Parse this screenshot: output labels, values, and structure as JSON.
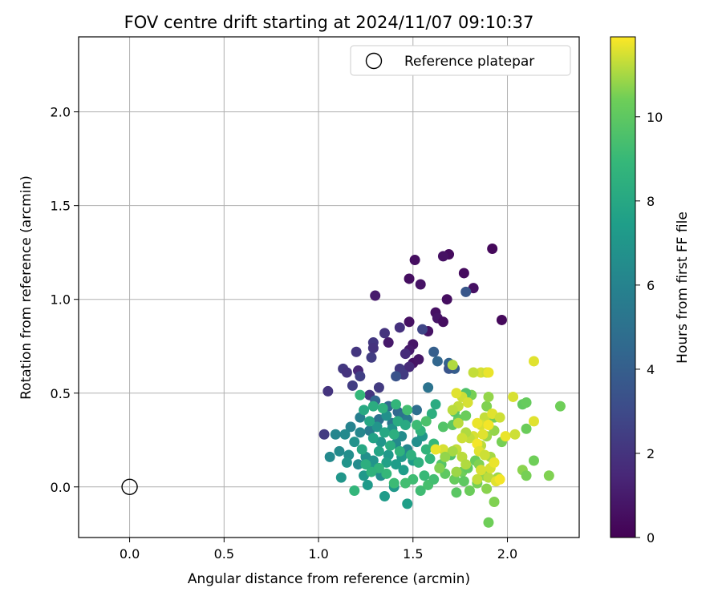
{
  "chart_data": {
    "type": "scatter",
    "title": "FOV centre drift starting at 2024/11/07 09:10:37",
    "xlabel": "Angular distance from reference (arcmin)",
    "ylabel": "Rotation from reference (arcmin)",
    "xlim": [
      -0.27,
      2.38
    ],
    "ylim": [
      -0.27,
      2.4
    ],
    "xticks": [
      0.0,
      0.5,
      1.0,
      1.5,
      2.0
    ],
    "xtick_labels": [
      "0.0",
      "0.5",
      "1.0",
      "1.5",
      "2.0"
    ],
    "yticks": [
      0.0,
      0.5,
      1.0,
      1.5,
      2.0
    ],
    "ytick_labels": [
      "0.0",
      "0.5",
      "1.0",
      "1.5",
      "2.0"
    ],
    "grid": true,
    "legend": {
      "placement": "top-right",
      "entries": [
        {
          "label": "Reference platepar",
          "marker": "open-circle",
          "color": "#000000"
        }
      ]
    },
    "reference_point": {
      "x": 0.0,
      "y": 0.0
    },
    "colorbar": {
      "label": "Hours from first FF file",
      "colormap": "viridis",
      "range": [
        0,
        11.9
      ],
      "ticks": [
        0,
        2,
        4,
        6,
        8,
        10
      ],
      "tick_labels": [
        "0",
        "2",
        "4",
        "6",
        "8",
        "10"
      ]
    },
    "points": [
      [
        1.92,
        1.27,
        0.3
      ],
      [
        1.51,
        1.21,
        0.5
      ],
      [
        1.69,
        1.24,
        0.4
      ],
      [
        1.66,
        1.23,
        0.6
      ],
      [
        1.77,
        1.14,
        0.4
      ],
      [
        1.48,
        1.11,
        0.5
      ],
      [
        1.54,
        1.08,
        0.7
      ],
      [
        1.82,
        1.06,
        0.6
      ],
      [
        1.3,
        1.02,
        1.0
      ],
      [
        1.68,
        1.0,
        0.5
      ],
      [
        1.97,
        0.89,
        0.3
      ],
      [
        1.62,
        0.93,
        0.6
      ],
      [
        1.63,
        0.9,
        0.8
      ],
      [
        1.66,
        0.88,
        0.5
      ],
      [
        1.48,
        0.88,
        0.6
      ],
      [
        1.58,
        0.83,
        0.7
      ],
      [
        1.5,
        0.76,
        0.8
      ],
      [
        1.37,
        0.77,
        0.9
      ],
      [
        1.48,
        0.73,
        1.0
      ],
      [
        1.5,
        0.66,
        0.7
      ],
      [
        1.53,
        0.68,
        0.8
      ],
      [
        1.55,
        0.84,
        2.8
      ],
      [
        1.78,
        1.04,
        3.6
      ],
      [
        1.43,
        0.85,
        1.9
      ],
      [
        1.35,
        0.82,
        2.0
      ],
      [
        1.29,
        0.77,
        2.2
      ],
      [
        1.29,
        0.74,
        2.0
      ],
      [
        1.2,
        0.72,
        2.1
      ],
      [
        1.46,
        0.71,
        1.7
      ],
      [
        1.48,
        0.64,
        1.6
      ],
      [
        1.43,
        0.63,
        2.2
      ],
      [
        1.45,
        0.6,
        2.3
      ],
      [
        1.28,
        0.69,
        2.4
      ],
      [
        1.21,
        0.62,
        1.5
      ],
      [
        1.13,
        0.63,
        2.2
      ],
      [
        1.15,
        0.61,
        2.0
      ],
      [
        1.22,
        0.59,
        2.5
      ],
      [
        1.32,
        0.53,
        2.3
      ],
      [
        1.27,
        0.49,
        2.1
      ],
      [
        1.18,
        0.54,
        2.4
      ],
      [
        1.05,
        0.51,
        2.0
      ],
      [
        1.03,
        0.28,
        2.3
      ],
      [
        1.41,
        0.59,
        3.4
      ],
      [
        1.61,
        0.72,
        4.0
      ],
      [
        1.63,
        0.67,
        4.4
      ],
      [
        1.69,
        0.66,
        4.2
      ],
      [
        1.72,
        0.63,
        3.9
      ],
      [
        1.69,
        0.63,
        3.5
      ],
      [
        1.3,
        0.46,
        4.4
      ],
      [
        1.37,
        0.43,
        4.6
      ],
      [
        1.42,
        0.4,
        4.5
      ],
      [
        1.45,
        0.38,
        5.0
      ],
      [
        1.52,
        0.41,
        4.8
      ],
      [
        1.58,
        0.53,
        5.1
      ],
      [
        1.47,
        0.36,
        5.5
      ],
      [
        1.39,
        0.34,
        5.3
      ],
      [
        1.32,
        0.36,
        5.0
      ],
      [
        1.27,
        0.3,
        5.6
      ],
      [
        1.22,
        0.37,
        5.7
      ],
      [
        1.17,
        0.32,
        6.0
      ],
      [
        1.22,
        0.29,
        6.2
      ],
      [
        1.14,
        0.28,
        6.3
      ],
      [
        1.09,
        0.28,
        6.1
      ],
      [
        1.11,
        0.19,
        6.4
      ],
      [
        1.06,
        0.16,
        6.3
      ],
      [
        1.16,
        0.17,
        6.6
      ],
      [
        1.19,
        0.24,
        6.8
      ],
      [
        1.15,
        0.13,
        6.9
      ],
      [
        1.12,
        0.05,
        7.0
      ],
      [
        1.21,
        0.12,
        6.5
      ],
      [
        1.25,
        0.16,
        6.7
      ],
      [
        1.29,
        0.14,
        6.9
      ],
      [
        1.24,
        0.06,
        7.1
      ],
      [
        1.3,
        0.1,
        7.0
      ],
      [
        1.33,
        0.06,
        6.6
      ],
      [
        1.26,
        0.01,
        7.2
      ],
      [
        1.35,
        -0.05,
        7.3
      ],
      [
        1.47,
        -0.09,
        7.5
      ],
      [
        1.4,
        0.0,
        7.1
      ],
      [
        1.45,
        0.09,
        7.4
      ],
      [
        1.37,
        0.17,
        7.2
      ],
      [
        1.33,
        0.24,
        7.0
      ],
      [
        1.31,
        0.32,
        6.9
      ],
      [
        1.36,
        0.38,
        6.7
      ],
      [
        1.39,
        0.31,
        6.8
      ],
      [
        1.44,
        0.27,
        6.5
      ],
      [
        1.41,
        0.23,
        6.4
      ],
      [
        1.47,
        0.2,
        6.2
      ],
      [
        1.52,
        0.24,
        6.6
      ],
      [
        1.55,
        0.27,
        7.0
      ],
      [
        1.5,
        0.14,
        7.3
      ],
      [
        1.44,
        0.16,
        7.1
      ],
      [
        1.41,
        0.12,
        7.4
      ],
      [
        1.36,
        0.13,
        7.6
      ],
      [
        1.32,
        0.19,
        7.8
      ],
      [
        1.29,
        0.26,
        7.7
      ],
      [
        1.27,
        0.35,
        7.9
      ],
      [
        1.35,
        0.29,
        8.0
      ],
      [
        1.42,
        0.35,
        8.2
      ],
      [
        1.46,
        0.33,
        8.1
      ],
      [
        1.4,
        0.28,
        8.4
      ],
      [
        1.38,
        0.22,
        8.3
      ],
      [
        1.43,
        0.19,
        8.6
      ],
      [
        1.49,
        0.17,
        8.5
      ],
      [
        1.57,
        0.2,
        8.7
      ],
      [
        1.61,
        0.23,
        8.9
      ],
      [
        1.59,
        0.15,
        8.8
      ],
      [
        1.53,
        0.13,
        8.5
      ],
      [
        1.56,
        0.06,
        9.0
      ],
      [
        1.5,
        0.04,
        9.2
      ],
      [
        1.46,
        0.02,
        9.3
      ],
      [
        1.4,
        0.02,
        9.1
      ],
      [
        1.36,
        0.07,
        8.9
      ],
      [
        1.32,
        0.1,
        8.7
      ],
      [
        1.28,
        0.08,
        8.6
      ],
      [
        1.25,
        0.12,
        8.4
      ],
      [
        1.23,
        0.2,
        8.0
      ],
      [
        1.19,
        -0.02,
        8.8
      ],
      [
        1.54,
        -0.02,
        9.2
      ],
      [
        1.58,
        0.01,
        9.4
      ],
      [
        1.61,
        0.04,
        9.3
      ],
      [
        1.54,
        0.3,
        8.6
      ],
      [
        1.6,
        0.39,
        8.4
      ],
      [
        1.62,
        0.44,
        8.2
      ],
      [
        1.52,
        0.33,
        9.1
      ],
      [
        1.47,
        0.41,
        9.3
      ],
      [
        1.41,
        0.44,
        8.8
      ],
      [
        1.34,
        0.42,
        8.5
      ],
      [
        1.29,
        0.43,
        8.3
      ],
      [
        1.24,
        0.41,
        8.1
      ],
      [
        1.22,
        0.49,
        8.9
      ],
      [
        1.57,
        0.35,
        9.5
      ],
      [
        1.66,
        0.32,
        9.7
      ],
      [
        1.71,
        0.33,
        9.9
      ],
      [
        1.74,
        0.36,
        10.1
      ],
      [
        1.78,
        0.38,
        10.3
      ],
      [
        1.81,
        0.49,
        10.5
      ],
      [
        1.78,
        0.5,
        9.6
      ],
      [
        1.72,
        0.4,
        9.8
      ],
      [
        1.7,
        0.17,
        9.6
      ],
      [
        1.65,
        0.12,
        9.8
      ],
      [
        1.67,
        0.07,
        10.0
      ],
      [
        1.72,
        0.04,
        10.2
      ],
      [
        1.76,
        0.08,
        10.4
      ],
      [
        1.79,
        0.1,
        10.1
      ],
      [
        1.83,
        0.14,
        10.3
      ],
      [
        1.85,
        0.12,
        10.6
      ],
      [
        1.88,
        0.06,
        10.8
      ],
      [
        1.84,
        0.02,
        10.5
      ],
      [
        1.8,
        -0.02,
        10.3
      ],
      [
        1.77,
        0.03,
        10.0
      ],
      [
        1.73,
        -0.03,
        9.9
      ],
      [
        1.89,
        -0.01,
        10.7
      ],
      [
        1.93,
        -0.08,
        10.6
      ],
      [
        1.9,
        -0.19,
        10.4
      ],
      [
        1.95,
        0.05,
        10.9
      ],
      [
        1.91,
        0.16,
        11.0
      ],
      [
        1.86,
        0.22,
        11.2
      ],
      [
        1.89,
        0.27,
        10.9
      ],
      [
        1.93,
        0.3,
        10.8
      ],
      [
        1.97,
        0.24,
        10.5
      ],
      [
        2.08,
        0.09,
        10.7
      ],
      [
        2.1,
        0.06,
        10.5
      ],
      [
        2.14,
        0.14,
        10.4
      ],
      [
        2.1,
        0.31,
        10.3
      ],
      [
        2.08,
        0.44,
        10.1
      ],
      [
        2.1,
        0.45,
        10.2
      ],
      [
        2.22,
        0.06,
        10.6
      ],
      [
        2.28,
        0.43,
        10.4
      ],
      [
        1.93,
        0.37,
        10.5
      ],
      [
        1.89,
        0.43,
        10.6
      ],
      [
        1.9,
        0.48,
        10.8
      ],
      [
        1.86,
        0.61,
        11.5
      ],
      [
        1.89,
        0.61,
        11.4
      ],
      [
        1.9,
        0.61,
        11.7
      ],
      [
        1.82,
        0.61,
        11.3
      ],
      [
        1.71,
        0.65,
        11.1
      ],
      [
        2.14,
        0.67,
        11.6
      ],
      [
        1.76,
        0.48,
        11.4
      ],
      [
        1.73,
        0.5,
        11.6
      ],
      [
        1.79,
        0.45,
        11.5
      ],
      [
        1.74,
        0.43,
        11.3
      ],
      [
        1.71,
        0.41,
        11.2
      ],
      [
        1.88,
        0.37,
        11.3
      ],
      [
        1.86,
        0.33,
        11.5
      ],
      [
        1.84,
        0.34,
        11.7
      ],
      [
        1.9,
        0.33,
        11.8
      ],
      [
        1.92,
        0.39,
        11.6
      ],
      [
        1.96,
        0.37,
        11.4
      ],
      [
        2.03,
        0.48,
        11.5
      ],
      [
        2.14,
        0.35,
        11.6
      ],
      [
        1.99,
        0.27,
        11.7
      ],
      [
        2.04,
        0.28,
        11.4
      ],
      [
        1.87,
        0.28,
        11.6
      ],
      [
        1.82,
        0.27,
        11.5
      ],
      [
        1.8,
        0.26,
        11.3
      ],
      [
        1.78,
        0.29,
        11.1
      ],
      [
        1.74,
        0.34,
        11.2
      ],
      [
        1.76,
        0.26,
        11.4
      ],
      [
        1.73,
        0.2,
        11.3
      ],
      [
        1.66,
        0.2,
        11.5
      ],
      [
        1.62,
        0.2,
        11.7
      ],
      [
        1.84,
        0.23,
        11.8
      ],
      [
        1.85,
        0.19,
        11.6
      ],
      [
        1.88,
        0.17,
        11.4
      ],
      [
        1.86,
        0.09,
        11.5
      ],
      [
        1.84,
        0.04,
        11.3
      ],
      [
        1.9,
        0.05,
        11.2
      ],
      [
        1.91,
        0.1,
        11.5
      ],
      [
        1.93,
        0.13,
        11.7
      ],
      [
        1.94,
        0.03,
        11.6
      ],
      [
        1.96,
        0.04,
        11.8
      ],
      [
        1.76,
        0.16,
        11.2
      ],
      [
        1.71,
        0.19,
        11.0
      ],
      [
        1.67,
        0.16,
        10.8
      ],
      [
        1.64,
        0.1,
        10.6
      ],
      [
        1.73,
        0.08,
        10.9
      ],
      [
        1.78,
        0.12,
        11.1
      ]
    ]
  }
}
